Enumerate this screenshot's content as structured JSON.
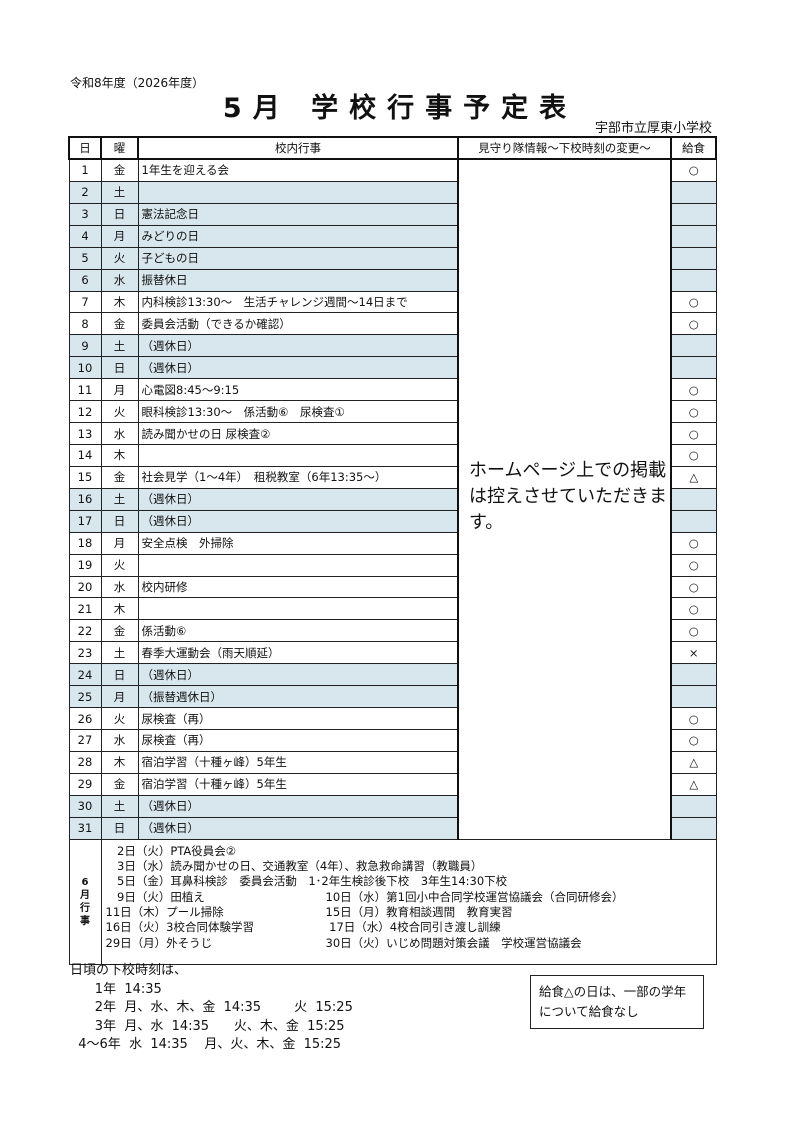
{
  "header": {
    "year": "令和8年度（2026年度）",
    "title": "5月 学校行事予定表",
    "school": "宇部市立厚東小学校"
  },
  "columns": {
    "day": "日",
    "weekday": "曜",
    "events": "校内行事",
    "watch": "見守り隊情報～下校時刻の変更～",
    "lunch": "給食"
  },
  "watch_text": "ホームページ上での掲載は控えさせていただきます。",
  "shade_color": "#d6e6ef",
  "rows": [
    {
      "day": "1",
      "wd": "金",
      "ev": "1年生を迎える会",
      "lunch": "○",
      "off": false
    },
    {
      "day": "2",
      "wd": "土",
      "ev": "",
      "lunch": "",
      "off": true
    },
    {
      "day": "3",
      "wd": "日",
      "ev": "憲法記念日",
      "lunch": "",
      "off": true
    },
    {
      "day": "4",
      "wd": "月",
      "ev": "みどりの日",
      "lunch": "",
      "off": true
    },
    {
      "day": "5",
      "wd": "火",
      "ev": "子どもの日",
      "lunch": "",
      "off": true
    },
    {
      "day": "6",
      "wd": "水",
      "ev": "振替休日",
      "lunch": "",
      "off": true
    },
    {
      "day": "7",
      "wd": "木",
      "ev": "内科検診13:30～　生活チャレンジ週間～14日まで",
      "lunch": "○",
      "off": false
    },
    {
      "day": "8",
      "wd": "金",
      "ev": "委員会活動（できるか確認）",
      "lunch": "○",
      "off": false
    },
    {
      "day": "9",
      "wd": "土",
      "ev": "（週休日）",
      "lunch": "",
      "off": true
    },
    {
      "day": "10",
      "wd": "日",
      "ev": "（週休日）",
      "lunch": "",
      "off": true
    },
    {
      "day": "11",
      "wd": "月",
      "ev": "心電図8:45～9:15",
      "lunch": "○",
      "off": false
    },
    {
      "day": "12",
      "wd": "火",
      "ev": "眼科検診13:30～　係活動⑥　尿検査①",
      "lunch": "○",
      "off": false
    },
    {
      "day": "13",
      "wd": "水",
      "ev": "読み聞かせの日 尿検査②",
      "lunch": "○",
      "off": false
    },
    {
      "day": "14",
      "wd": "木",
      "ev": "",
      "lunch": "○",
      "off": false
    },
    {
      "day": "15",
      "wd": "金",
      "ev": "社会見学（1～4年）　租税教室（6年13:35～）",
      "lunch": "△",
      "off": false
    },
    {
      "day": "16",
      "wd": "土",
      "ev": "（週休日）",
      "lunch": "",
      "off": true
    },
    {
      "day": "17",
      "wd": "日",
      "ev": "（週休日）",
      "lunch": "",
      "off": true
    },
    {
      "day": "18",
      "wd": "月",
      "ev": "安全点検　外掃除",
      "lunch": "○",
      "off": false
    },
    {
      "day": "19",
      "wd": "火",
      "ev": "",
      "lunch": "○",
      "off": false
    },
    {
      "day": "20",
      "wd": "水",
      "ev": "校内研修",
      "lunch": "○",
      "off": false
    },
    {
      "day": "21",
      "wd": "木",
      "ev": "",
      "lunch": "○",
      "off": false
    },
    {
      "day": "22",
      "wd": "金",
      "ev": "係活動⑥",
      "lunch": "○",
      "off": false
    },
    {
      "day": "23",
      "wd": "土",
      "ev": "春季大運動会（雨天順延）",
      "lunch": "×",
      "off": false
    },
    {
      "day": "24",
      "wd": "日",
      "ev": "（週休日）",
      "lunch": "",
      "off": true
    },
    {
      "day": "25",
      "wd": "月",
      "ev": "（振替週休日）",
      "lunch": "",
      "off": true
    },
    {
      "day": "26",
      "wd": "火",
      "ev": "尿検査（再）",
      "lunch": "○",
      "off": false
    },
    {
      "day": "27",
      "wd": "水",
      "ev": "尿検査（再）",
      "lunch": "○",
      "off": false
    },
    {
      "day": "28",
      "wd": "木",
      "ev": "宿泊学習（十種ヶ峰）5年生",
      "lunch": "△",
      "off": false
    },
    {
      "day": "29",
      "wd": "金",
      "ev": "宿泊学習（十種ヶ峰）5年生",
      "lunch": "△",
      "off": false
    },
    {
      "day": "30",
      "wd": "土",
      "ev": "（週休日）",
      "lunch": "",
      "off": true
    },
    {
      "day": "31",
      "wd": "日",
      "ev": "（週休日）",
      "lunch": "",
      "off": true
    }
  ],
  "june": {
    "label": "6月行事",
    "lines": [
      [
        "　2日（火）PTA役員会②",
        ""
      ],
      [
        "　3日（水）読み聞かせの日、交通教室（4年）、救急救命講習（教職員）",
        ""
      ],
      [
        "　5日（金）耳鼻科検診　委員会活動　1･2年生検診後下校　3年生14:30下校",
        ""
      ],
      [
        "　9日（火）田植え",
        "10日（水）第1回小中合同学校運営協議会（合同研修会）"
      ],
      [
        "11日（木）プール掃除",
        "15日（月）教育相談週間　教育実習"
      ],
      [
        "16日（火）3校合同体験学習",
        " 17日（水）4校合同引き渡し訓練"
      ],
      [
        "29日（月）外そうじ",
        "30日（火）いじめ問題対策会議　学校運営協議会"
      ]
    ]
  },
  "normal_times": [
    "日頃の下校時刻は、",
    "      1年  14:35",
    "      2年  月、水、木、金  14:35        火  15:25",
    "      3年  月、水  14:35      火、木、金  15:25",
    "  4～6年  水  14:35    月、火、木、金  15:25"
  ],
  "note": "給食△の日は、一部の学年について給食なし"
}
